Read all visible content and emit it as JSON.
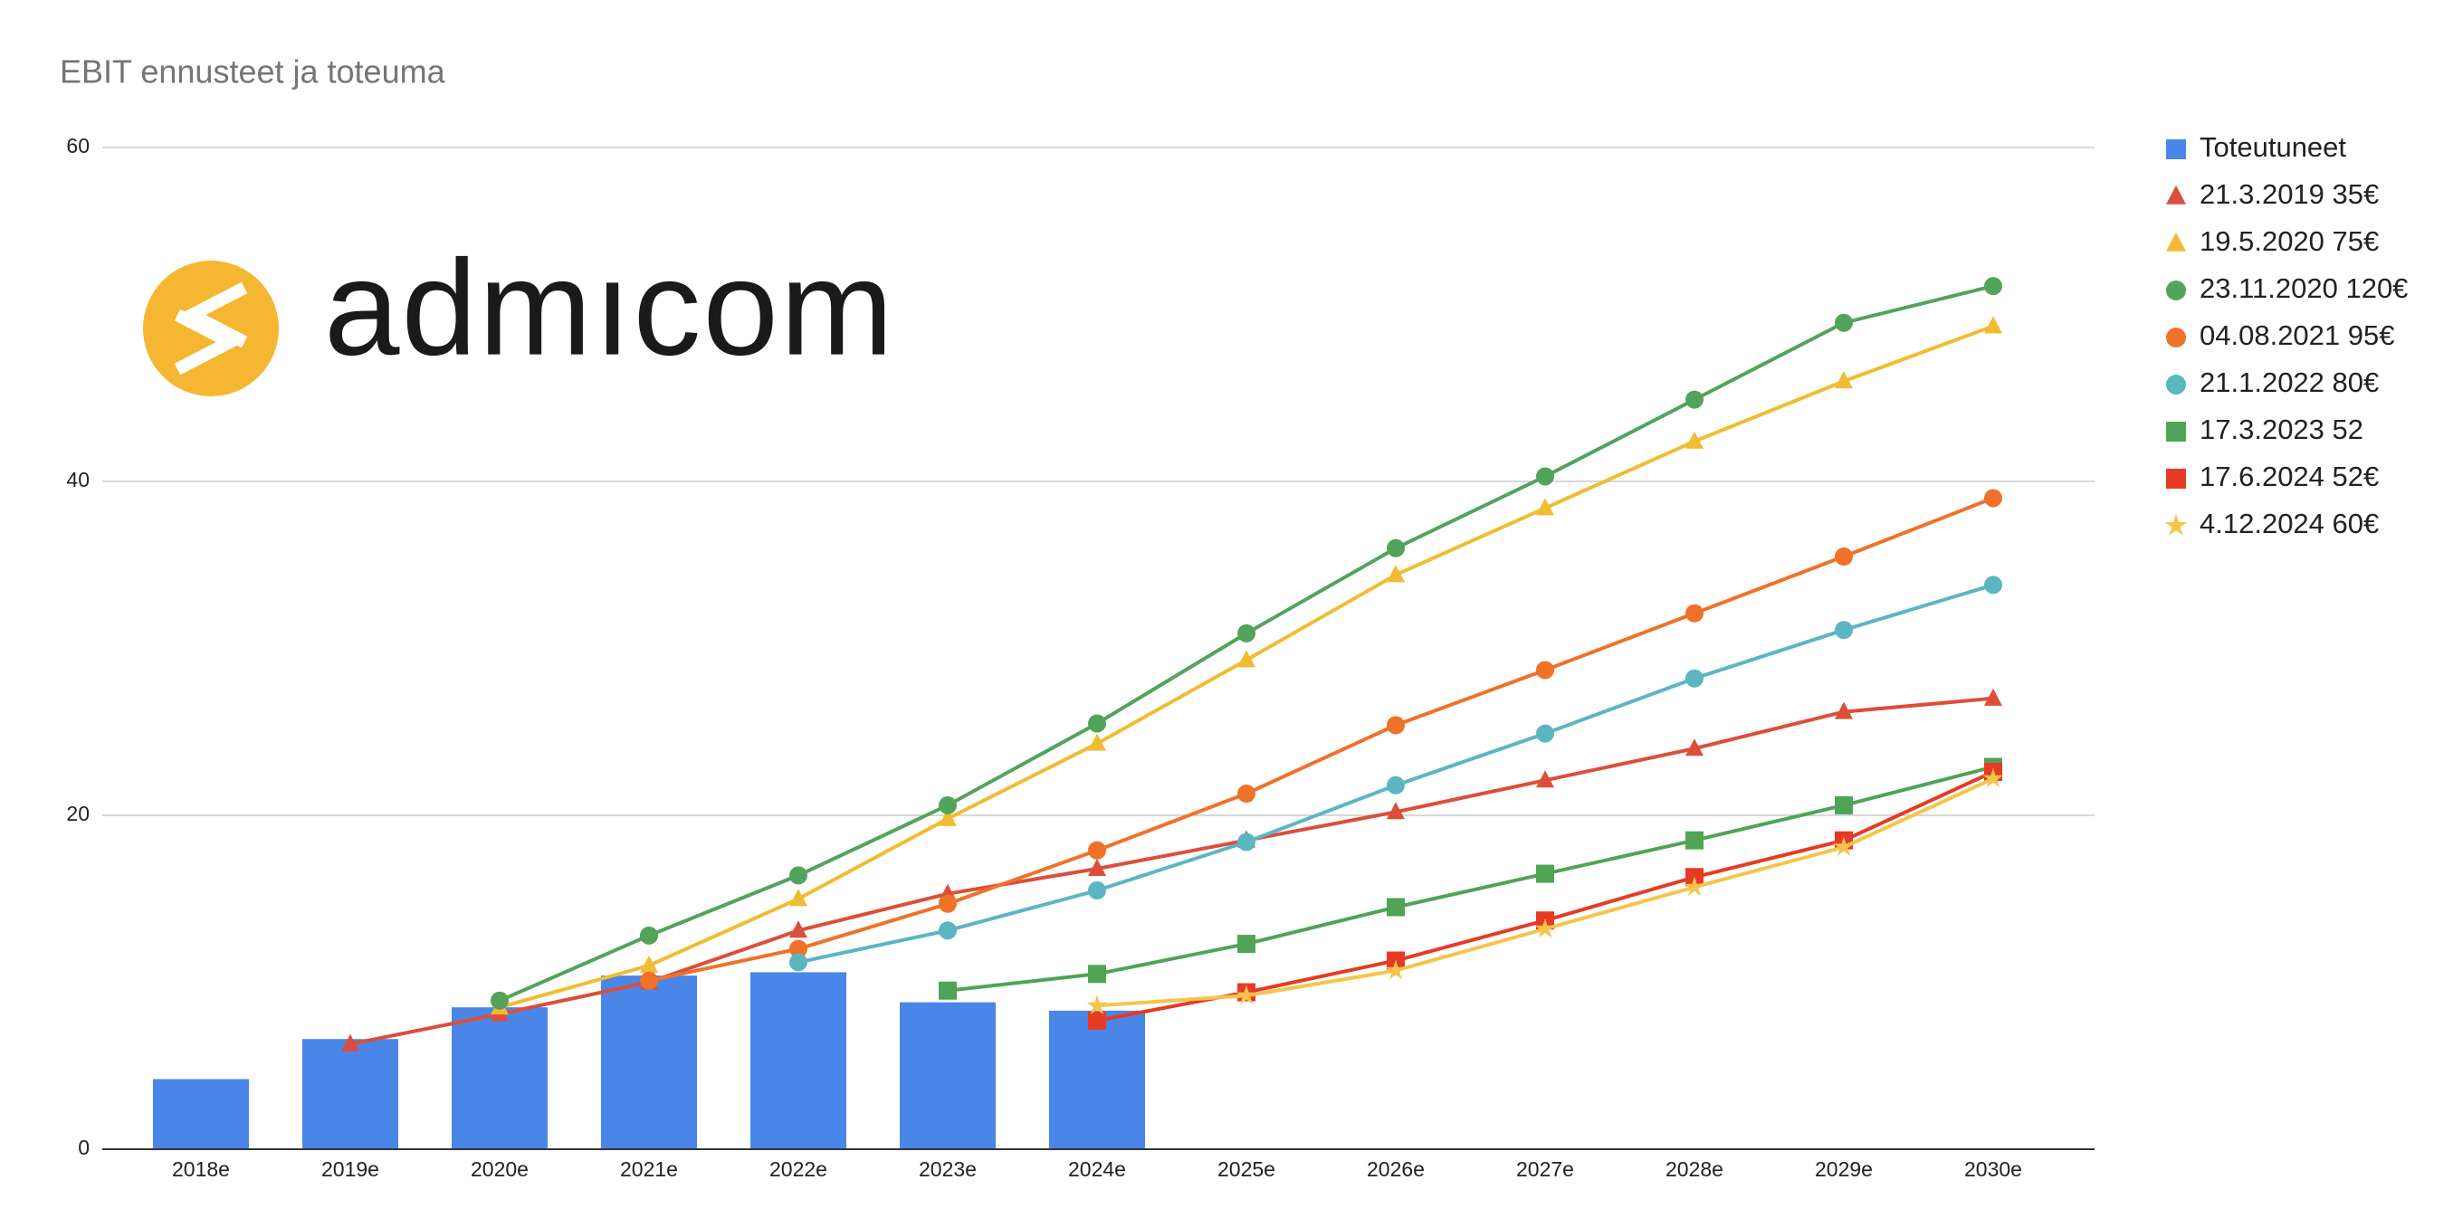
{
  "chart_data": {
    "type": "combo",
    "title": "EBIT ennusteet ja toteuma",
    "logo": "admıcom",
    "categories": [
      "2018e",
      "2019e",
      "2020e",
      "2021e",
      "2022e",
      "2023e",
      "2024e",
      "2025e",
      "2026e",
      "2027e",
      "2028e",
      "2029e",
      "2030e"
    ],
    "ylim": [
      0,
      60
    ],
    "yticks": [
      0,
      20,
      40,
      60
    ],
    "grid": true,
    "legend": "right",
    "series": [
      {
        "name": "Toteutuneet",
        "type": "bar",
        "color": "#4a86e8",
        "marker": "square",
        "values": [
          4.2,
          6.6,
          8.5,
          10.4,
          10.6,
          8.8,
          8.3,
          null,
          null,
          null,
          null,
          null,
          null
        ]
      },
      {
        "name": "21.3.2019 35€",
        "type": "line",
        "color": "#dc4e3a",
        "marker": "triangle",
        "values": [
          null,
          6.3,
          8.1,
          10.0,
          13.1,
          15.3,
          16.8,
          18.5,
          20.2,
          22.1,
          24.0,
          26.2,
          27.0
        ]
      },
      {
        "name": "19.5.2020 75€",
        "type": "line",
        "color": "#f1bc32",
        "marker": "triangle",
        "values": [
          null,
          null,
          8.5,
          11.0,
          15.0,
          19.8,
          24.3,
          29.3,
          34.4,
          38.4,
          42.4,
          46.0,
          49.3
        ]
      },
      {
        "name": "23.11.2020 120€",
        "type": "line",
        "color": "#52a45a",
        "marker": "circle",
        "values": [
          null,
          null,
          8.9,
          12.8,
          16.4,
          20.6,
          25.5,
          30.9,
          36.0,
          40.3,
          44.9,
          49.5,
          51.7
        ]
      },
      {
        "name": "04.08.2021 95€",
        "type": "line",
        "color": "#f07128",
        "marker": "circle",
        "values": [
          null,
          null,
          null,
          10.1,
          12.0,
          14.7,
          17.9,
          21.3,
          25.4,
          28.7,
          32.1,
          35.5,
          39.0
        ]
      },
      {
        "name": "21.1.2022 80€",
        "type": "line",
        "color": "#5bb6c2",
        "marker": "circle",
        "values": [
          null,
          null,
          null,
          null,
          11.2,
          13.1,
          15.5,
          18.4,
          21.8,
          24.9,
          28.2,
          31.1,
          33.8
        ]
      },
      {
        "name": "17.3.2023 52",
        "type": "line",
        "color": "#4fa455",
        "marker": "square",
        "values": [
          null,
          null,
          null,
          null,
          null,
          9.5,
          10.5,
          12.3,
          14.5,
          16.5,
          18.5,
          20.6,
          22.9
        ]
      },
      {
        "name": "17.6.2024 52€",
        "type": "line",
        "color": "#e73a24",
        "marker": "square",
        "values": [
          null,
          null,
          null,
          null,
          null,
          null,
          7.7,
          9.4,
          11.3,
          13.7,
          16.3,
          18.5,
          22.6
        ]
      },
      {
        "name": "4.12.2024 60€",
        "type": "line",
        "color": "#f5c44a",
        "marker": "star",
        "values": [
          null,
          null,
          null,
          null,
          null,
          null,
          8.6,
          9.2,
          10.7,
          13.2,
          15.7,
          18.1,
          22.2
        ]
      }
    ]
  }
}
